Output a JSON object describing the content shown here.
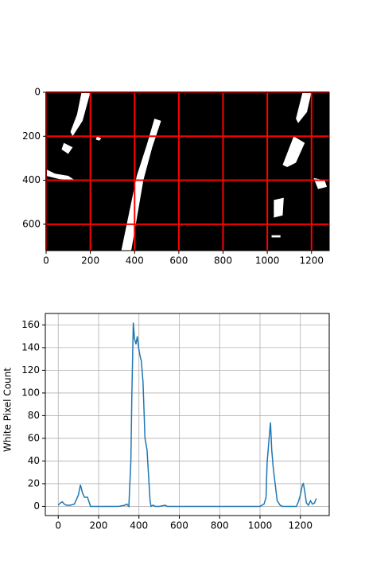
{
  "chart_data": [
    {
      "type": "image",
      "xlim": [
        0,
        1280
      ],
      "ylim": [
        720,
        0
      ],
      "xticks": [
        0,
        200,
        400,
        600,
        800,
        1000,
        1200
      ],
      "yticks": [
        0,
        200,
        400,
        600
      ],
      "grid": true,
      "grid_color": "#ff0000"
    },
    {
      "type": "line",
      "ylabel": "White Pixel Count",
      "color": "#1f77b4",
      "x": [
        0,
        10,
        20,
        30,
        40,
        60,
        80,
        100,
        110,
        120,
        130,
        145,
        160,
        200,
        300,
        330,
        340,
        350,
        360,
        365,
        372,
        378,
        385,
        392,
        398,
        405,
        412,
        420,
        430,
        440,
        450,
        455,
        460,
        470,
        480,
        500,
        530,
        540,
        700,
        1000,
        1020,
        1030,
        1035,
        1045,
        1052,
        1058,
        1065,
        1075,
        1085,
        1100,
        1110,
        1180,
        1190,
        1200,
        1210,
        1215,
        1220,
        1230,
        1240,
        1250,
        1260,
        1270,
        1279
      ],
      "values": [
        1,
        3,
        4,
        2,
        1,
        1,
        2,
        10,
        19,
        12,
        8,
        8,
        0,
        0,
        0,
        1,
        2,
        0,
        40,
        100,
        162,
        148,
        143,
        150,
        140,
        133,
        128,
        110,
        60,
        50,
        20,
        5,
        0,
        1,
        0,
        0,
        1,
        0,
        0,
        0,
        2,
        8,
        38,
        60,
        74,
        50,
        35,
        20,
        5,
        1,
        0,
        0,
        4,
        10,
        19,
        20,
        15,
        3,
        1,
        5,
        2,
        3,
        7
      ],
      "xlim": [
        -64,
        1343
      ],
      "ylim": [
        -8.1,
        170.1
      ],
      "xticks": [
        0,
        200,
        400,
        600,
        800,
        1000,
        1200
      ],
      "yticks": [
        0,
        20,
        40,
        60,
        80,
        100,
        120,
        140,
        160
      ],
      "grid": true
    }
  ]
}
